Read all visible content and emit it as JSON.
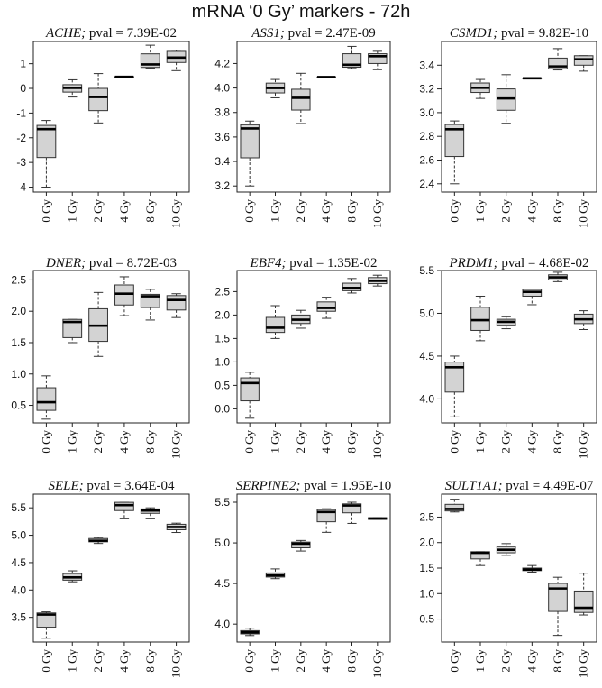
{
  "title": "mRNA ‘0 Gy’ markers - 72h",
  "chart_data": [
    {
      "type": "box",
      "gene": "ACHE;",
      "pval_label": "pval = 7.39E-02",
      "categories": [
        "0 Gy",
        "1 Gy",
        "2 Gy",
        "4 Gy",
        "8 Gy",
        "10 Gy"
      ],
      "ylim": [
        -4.2,
        1.9
      ],
      "yticks": [
        "-4",
        "-3",
        "-2",
        "-1",
        "0",
        "1"
      ],
      "boxes": [
        {
          "min": -4.0,
          "q1": -2.8,
          "med": -1.65,
          "q3": -1.5,
          "max": -1.3
        },
        {
          "min": -0.35,
          "q1": -0.15,
          "med": 0.02,
          "q3": 0.15,
          "max": 0.35
        },
        {
          "min": -1.4,
          "q1": -0.9,
          "med": -0.35,
          "q3": 0.0,
          "max": 0.6
        },
        {
          "min": 0.47,
          "q1": 0.47,
          "med": 0.47,
          "q3": 0.47,
          "max": 0.47
        },
        {
          "min": 0.82,
          "q1": 0.85,
          "med": 0.97,
          "q3": 1.4,
          "max": 1.75
        },
        {
          "min": 0.72,
          "q1": 1.05,
          "med": 1.25,
          "q3": 1.5,
          "max": 1.55
        }
      ]
    },
    {
      "type": "box",
      "gene": "ASS1;",
      "pval_label": "pval = 2.47E-09",
      "categories": [
        "0 Gy",
        "1 Gy",
        "2 Gy",
        "4 Gy",
        "8 Gy",
        "10 Gy"
      ],
      "ylim": [
        3.15,
        4.38
      ],
      "yticks": [
        "3.2",
        "3.4",
        "3.6",
        "3.8",
        "4.0",
        "4.2"
      ],
      "boxes": [
        {
          "min": 3.2,
          "q1": 3.43,
          "med": 3.67,
          "q3": 3.7,
          "max": 3.73
        },
        {
          "min": 3.92,
          "q1": 3.96,
          "med": 4.0,
          "q3": 4.04,
          "max": 4.07
        },
        {
          "min": 3.71,
          "q1": 3.82,
          "med": 3.92,
          "q3": 3.99,
          "max": 4.12
        },
        {
          "min": 4.09,
          "q1": 4.09,
          "med": 4.09,
          "q3": 4.09,
          "max": 4.09
        },
        {
          "min": 4.16,
          "q1": 4.17,
          "med": 4.19,
          "q3": 4.28,
          "max": 4.34
        },
        {
          "min": 4.15,
          "q1": 4.2,
          "med": 4.26,
          "q3": 4.28,
          "max": 4.3
        }
      ]
    },
    {
      "type": "box",
      "gene": "CSMD1;",
      "pval_label": "pval = 9.82E-10",
      "categories": [
        "0 Gy",
        "1 Gy",
        "2 Gy",
        "4 Gy",
        "8 Gy",
        "10 Gy"
      ],
      "ylim": [
        2.33,
        3.6
      ],
      "yticks": [
        "2.4",
        "2.6",
        "2.8",
        "3.0",
        "3.2",
        "3.4"
      ],
      "boxes": [
        {
          "min": 2.4,
          "q1": 2.63,
          "med": 2.86,
          "q3": 2.9,
          "max": 2.93
        },
        {
          "min": 3.12,
          "q1": 3.17,
          "med": 3.21,
          "q3": 3.25,
          "max": 3.28
        },
        {
          "min": 2.91,
          "q1": 3.02,
          "med": 3.12,
          "q3": 3.2,
          "max": 3.32
        },
        {
          "min": 3.29,
          "q1": 3.29,
          "med": 3.29,
          "q3": 3.29,
          "max": 3.29
        },
        {
          "min": 3.36,
          "q1": 3.37,
          "med": 3.39,
          "q3": 3.46,
          "max": 3.54
        },
        {
          "min": 3.35,
          "q1": 3.4,
          "med": 3.45,
          "q3": 3.48,
          "max": 3.48
        }
      ]
    },
    {
      "type": "box",
      "gene": "DNER;",
      "pval_label": "pval = 8.72E-03",
      "categories": [
        "0 Gy",
        "1 Gy",
        "2 Gy",
        "4 Gy",
        "8 Gy",
        "10 Gy"
      ],
      "ylim": [
        0.22,
        2.65
      ],
      "yticks": [
        "0.5",
        "1.0",
        "1.5",
        "2.0",
        "2.5"
      ],
      "boxes": [
        {
          "min": 0.28,
          "q1": 0.42,
          "med": 0.55,
          "q3": 0.78,
          "max": 0.97
        },
        {
          "min": 1.5,
          "q1": 1.58,
          "med": 1.83,
          "q3": 1.87,
          "max": 1.87
        },
        {
          "min": 1.28,
          "q1": 1.52,
          "med": 1.77,
          "q3": 2.04,
          "max": 2.3
        },
        {
          "min": 1.93,
          "q1": 2.1,
          "med": 2.28,
          "q3": 2.42,
          "max": 2.55
        },
        {
          "min": 1.86,
          "q1": 2.06,
          "med": 2.24,
          "q3": 2.27,
          "max": 2.35
        },
        {
          "min": 1.9,
          "q1": 2.02,
          "med": 2.18,
          "q3": 2.25,
          "max": 2.28
        }
      ]
    },
    {
      "type": "box",
      "gene": "EBF4;",
      "pval_label": "pval = 1.35E-02",
      "categories": [
        "0 Gy",
        "1 Gy",
        "2 Gy",
        "4 Gy",
        "8 Gy",
        "10 Gy"
      ],
      "ylim": [
        -0.3,
        2.95
      ],
      "yticks": [
        "0.0",
        "0.5",
        "1.0",
        "1.5",
        "2.0",
        "2.5"
      ],
      "boxes": [
        {
          "min": -0.2,
          "q1": 0.17,
          "med": 0.55,
          "q3": 0.66,
          "max": 0.78
        },
        {
          "min": 1.5,
          "q1": 1.63,
          "med": 1.73,
          "q3": 1.95,
          "max": 2.2
        },
        {
          "min": 1.72,
          "q1": 1.82,
          "med": 1.9,
          "q3": 2.0,
          "max": 2.1
        },
        {
          "min": 1.93,
          "q1": 2.08,
          "med": 2.15,
          "q3": 2.28,
          "max": 2.38
        },
        {
          "min": 2.47,
          "q1": 2.52,
          "med": 2.58,
          "q3": 2.68,
          "max": 2.78
        },
        {
          "min": 2.62,
          "q1": 2.67,
          "med": 2.73,
          "q3": 2.8,
          "max": 2.85
        }
      ]
    },
    {
      "type": "box",
      "gene": "PRDM1;",
      "pval_label": "pval = 4.68E-02",
      "categories": [
        "0 Gy",
        "1 Gy",
        "2 Gy",
        "4 Gy",
        "8 Gy",
        "10 Gy"
      ],
      "ylim": [
        3.72,
        5.5
      ],
      "yticks": [
        "4.0",
        "4.5",
        "5.0",
        "5.5"
      ],
      "boxes": [
        {
          "min": 3.79,
          "q1": 4.08,
          "med": 4.37,
          "q3": 4.43,
          "max": 4.5
        },
        {
          "min": 4.68,
          "q1": 4.8,
          "med": 4.92,
          "q3": 5.07,
          "max": 5.2
        },
        {
          "min": 4.82,
          "q1": 4.86,
          "med": 4.9,
          "q3": 4.93,
          "max": 4.96
        },
        {
          "min": 5.1,
          "q1": 5.2,
          "med": 5.25,
          "q3": 5.28,
          "max": 5.28
        },
        {
          "min": 5.37,
          "q1": 5.39,
          "med": 5.42,
          "q3": 5.45,
          "max": 5.48
        },
        {
          "min": 4.81,
          "q1": 4.88,
          "med": 4.93,
          "q3": 4.99,
          "max": 5.03
        }
      ]
    },
    {
      "type": "box",
      "gene": "SELE;",
      "pval_label": "pval = 3.64E-04",
      "categories": [
        "0 Gy",
        "1 Gy",
        "2 Gy",
        "4 Gy",
        "8 Gy",
        "10 Gy"
      ],
      "ylim": [
        3.05,
        5.75
      ],
      "yticks": [
        "3.5",
        "4.0",
        "4.5",
        "5.0",
        "5.5"
      ],
      "boxes": [
        {
          "min": 3.12,
          "q1": 3.32,
          "med": 3.55,
          "q3": 3.58,
          "max": 3.6
        },
        {
          "min": 4.15,
          "q1": 4.18,
          "med": 4.23,
          "q3": 4.3,
          "max": 4.35
        },
        {
          "min": 4.85,
          "q1": 4.88,
          "med": 4.9,
          "q3": 4.94,
          "max": 4.96
        },
        {
          "min": 5.3,
          "q1": 5.45,
          "med": 5.55,
          "q3": 5.6,
          "max": 5.6
        },
        {
          "min": 5.3,
          "q1": 5.4,
          "med": 5.45,
          "q3": 5.48,
          "max": 5.5
        },
        {
          "min": 5.05,
          "q1": 5.1,
          "med": 5.15,
          "q3": 5.2,
          "max": 5.22
        }
      ]
    },
    {
      "type": "box",
      "gene": "SERPINE2;",
      "pval_label": "pval = 1.95E-10",
      "categories": [
        "0 Gy",
        "1 Gy",
        "2 Gy",
        "4 Gy",
        "8 Gy",
        "10 Gy"
      ],
      "ylim": [
        3.78,
        5.6
      ],
      "yticks": [
        "4.0",
        "4.5",
        "5.0",
        "5.5"
      ],
      "boxes": [
        {
          "min": 3.86,
          "q1": 3.88,
          "med": 3.9,
          "q3": 3.92,
          "max": 3.95
        },
        {
          "min": 4.56,
          "q1": 4.58,
          "med": 4.6,
          "q3": 4.63,
          "max": 4.68
        },
        {
          "min": 4.9,
          "q1": 4.94,
          "med": 4.99,
          "q3": 5.01,
          "max": 5.03
        },
        {
          "min": 5.13,
          "q1": 5.26,
          "med": 5.38,
          "q3": 5.41,
          "max": 5.42
        },
        {
          "min": 5.24,
          "q1": 5.37,
          "med": 5.46,
          "q3": 5.48,
          "max": 5.5
        },
        {
          "min": 5.29,
          "q1": 5.29,
          "med": 5.3,
          "q3": 5.31,
          "max": 5.31
        }
      ]
    },
    {
      "type": "box",
      "gene": "SULT1A1;",
      "pval_label": "pval = 4.49E-07",
      "categories": [
        "0 Gy",
        "1 Gy",
        "2 Gy",
        "4 Gy",
        "8 Gy",
        "10 Gy"
      ],
      "ylim": [
        0.05,
        2.95
      ],
      "yticks": [
        "0.5",
        "1.0",
        "1.5",
        "2.0",
        "2.5"
      ],
      "boxes": [
        {
          "min": 2.6,
          "q1": 2.62,
          "med": 2.66,
          "q3": 2.75,
          "max": 2.85
        },
        {
          "min": 1.55,
          "q1": 1.68,
          "med": 1.8,
          "q3": 1.82,
          "max": 1.82
        },
        {
          "min": 1.75,
          "q1": 1.8,
          "med": 1.86,
          "q3": 1.92,
          "max": 1.98
        },
        {
          "min": 1.42,
          "q1": 1.45,
          "med": 1.47,
          "q3": 1.5,
          "max": 1.55
        },
        {
          "min": 0.18,
          "q1": 0.65,
          "med": 1.1,
          "q3": 1.2,
          "max": 1.32
        },
        {
          "min": 0.58,
          "q1": 0.63,
          "med": 0.72,
          "q3": 1.05,
          "max": 1.4
        }
      ]
    }
  ]
}
